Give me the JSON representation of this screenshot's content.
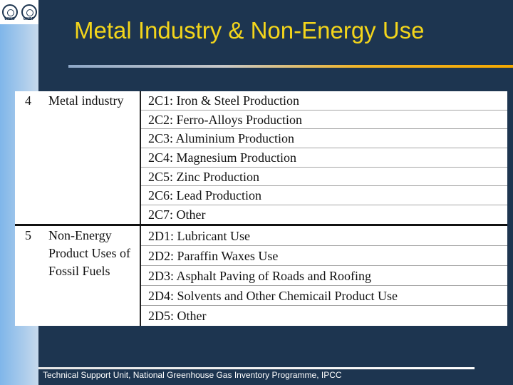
{
  "slide": {
    "title": "Metal Industry & Non-Energy Use",
    "logos": [
      {
        "icon": "wmo-logo",
        "caption": "WMO"
      },
      {
        "icon": "unep-logo",
        "caption": "UNEP"
      }
    ],
    "footer": "Technical Support Unit, National Greenhouse Gas Inventory Programme, IPCC",
    "colors": {
      "background": "#1d3550",
      "title": "#f3d51b"
    }
  },
  "table": {
    "groups": [
      {
        "number": "4",
        "category": "Metal industry",
        "items": [
          "2C1: Iron & Steel Production",
          "2C2: Ferro-Alloys Production",
          "2C3: Aluminium Production",
          "2C4: Magnesium Production",
          "2C5: Zinc Production",
          "2C6: Lead Production",
          "2C7: Other"
        ]
      },
      {
        "number": "5",
        "category_lines": [
          "Non-Energy",
          "Product Uses of",
          "Fossil Fuels"
        ],
        "items": [
          "2D1: Lubricant Use",
          "2D2: Paraffin Waxes Use",
          "2D3: Asphalt Paving of Roads and Roofing",
          "2D4: Solvents and Other Chemicail Product Use",
          "2D5: Other"
        ]
      }
    ]
  }
}
